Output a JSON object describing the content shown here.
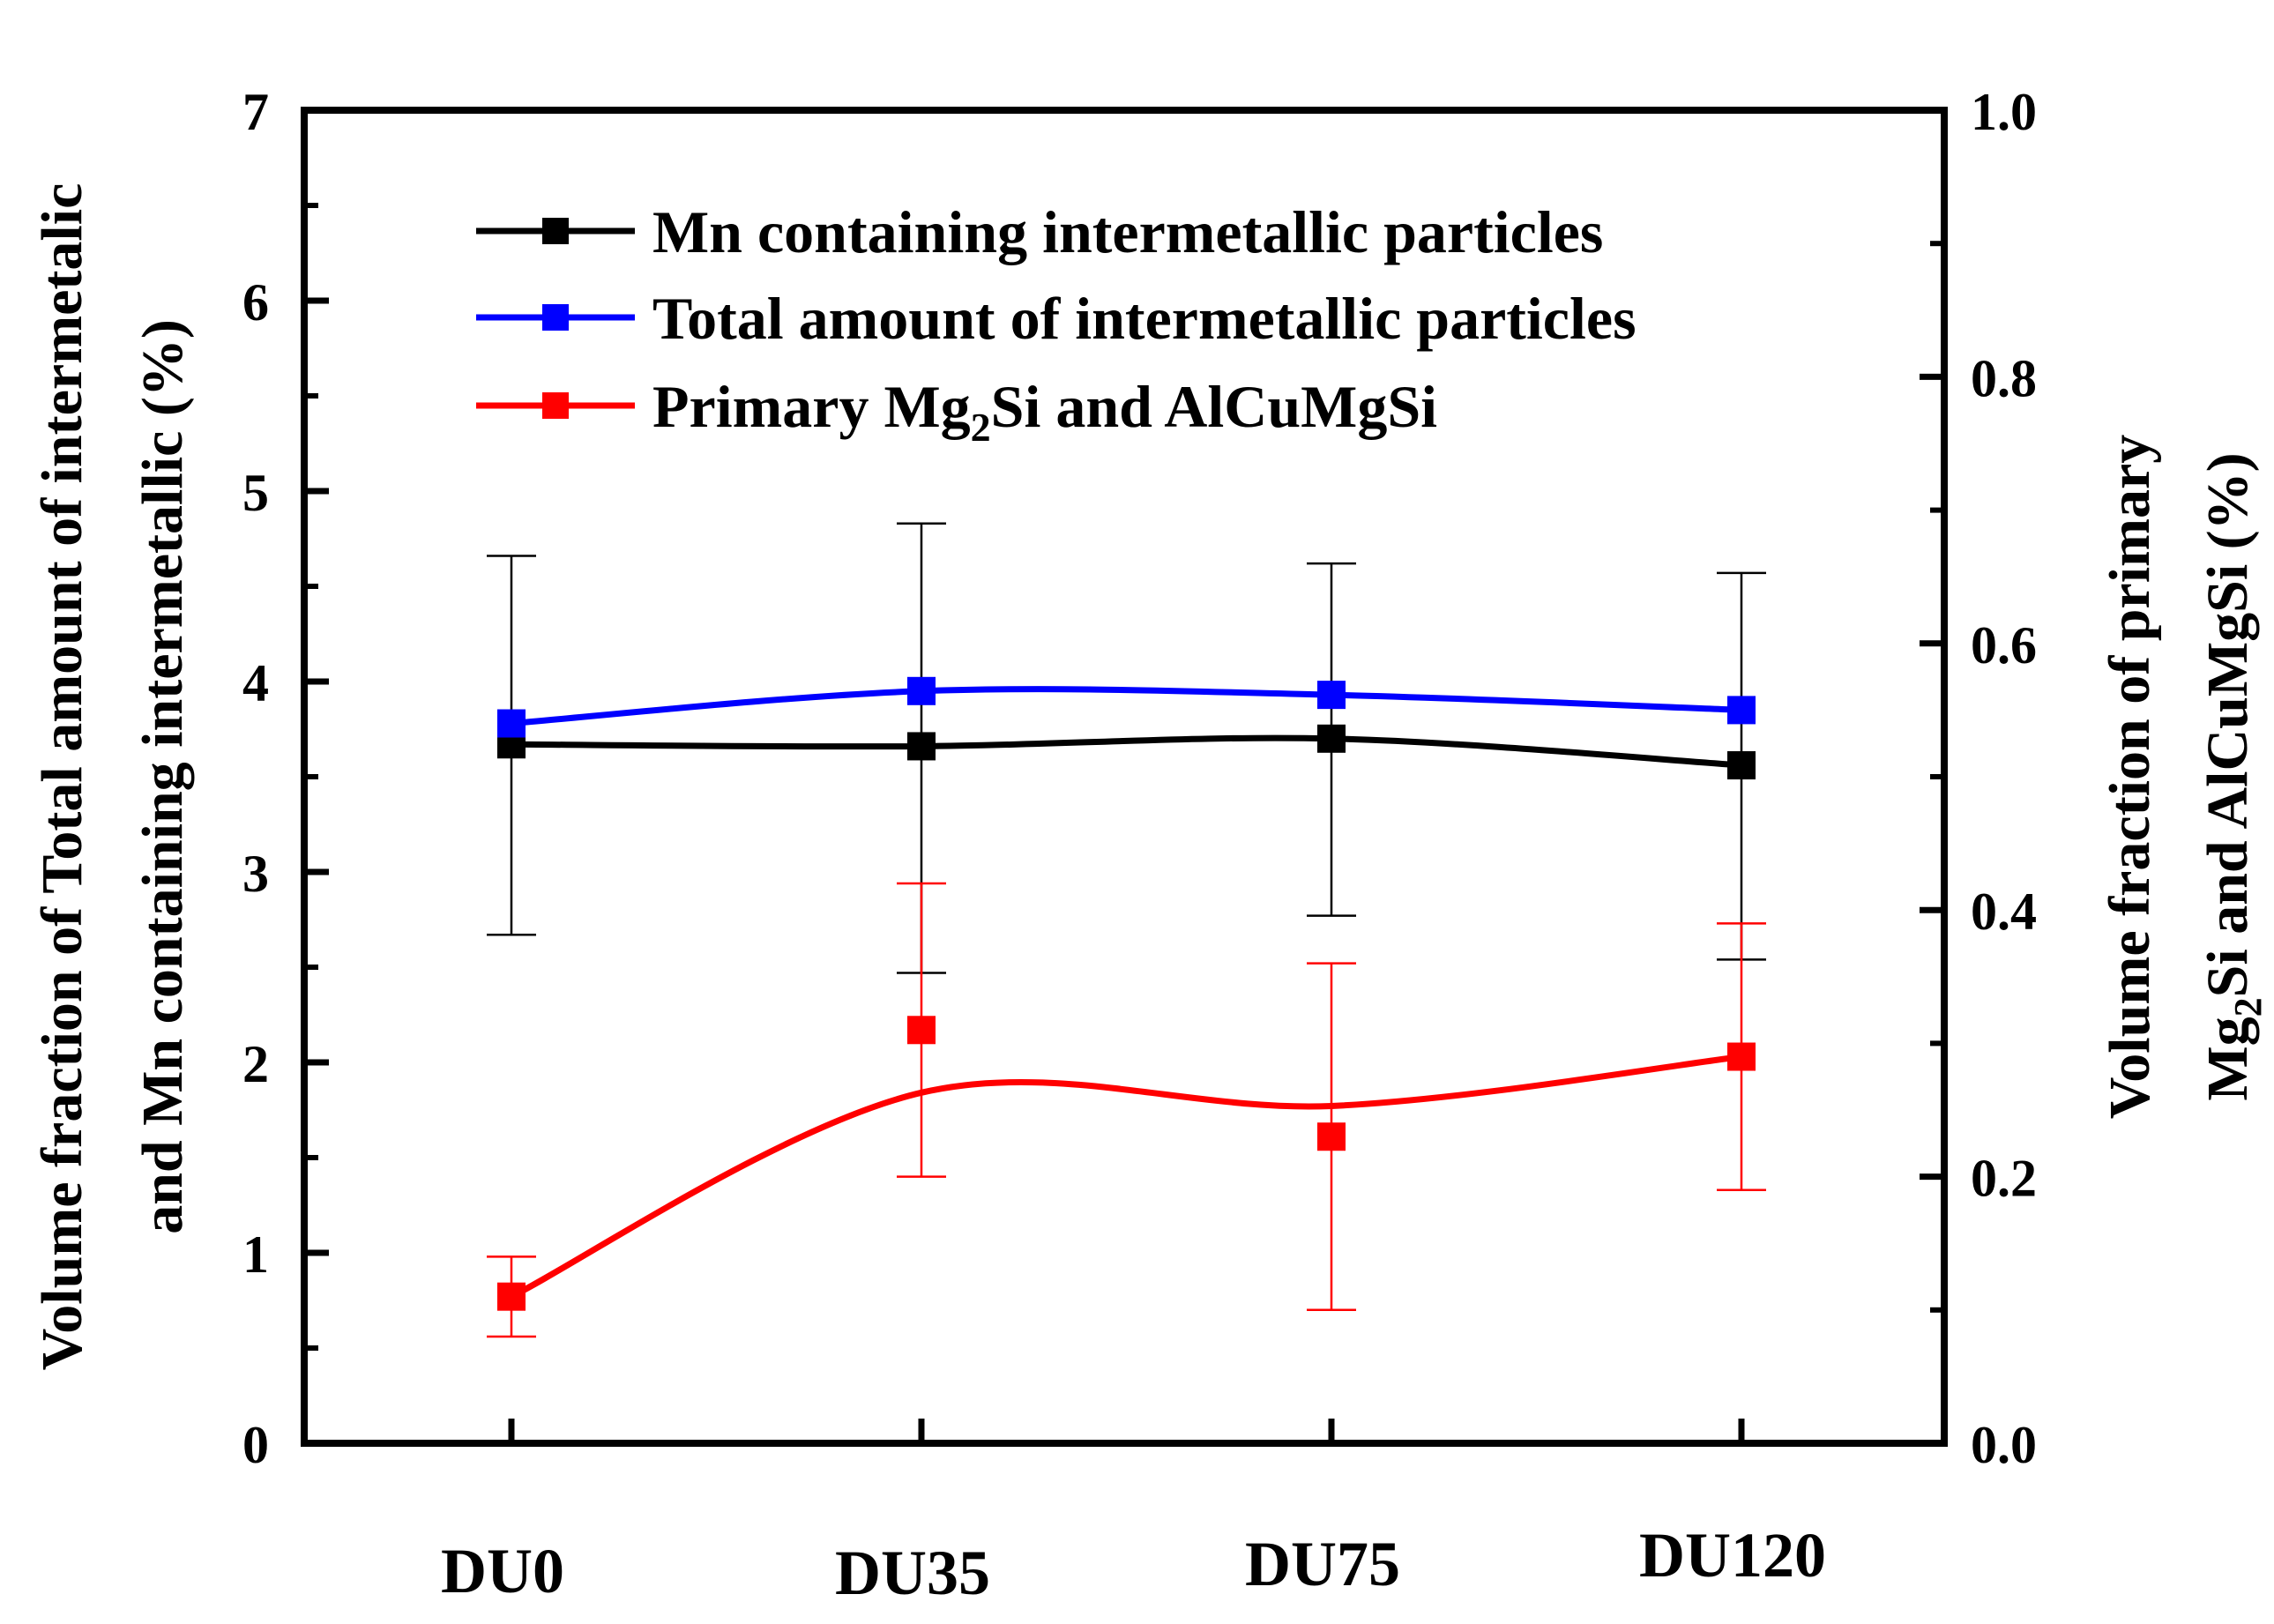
{
  "colors": {
    "mn": "#000000",
    "total": "#0000ff",
    "primary": "#ff0000",
    "axis": "#000000"
  },
  "chart_data": {
    "type": "line",
    "categories": [
      "DU0",
      "DU35",
      "DU75",
      "DU120"
    ],
    "left_axis": {
      "label_line1": "Volume fraction of Total amount of intermetalic",
      "label_line2": "and  Mn containing intermetallic (%)",
      "ylim": [
        0,
        7
      ],
      "ticks": [
        "0",
        "1",
        "2",
        "3",
        "4",
        "5",
        "6",
        "7"
      ]
    },
    "right_axis": {
      "label_line1": "Volume fraction of primary",
      "label_line2_a": "Mg",
      "label_line2_sub": "2",
      "label_line2_b": "Si and AlCuMgSi (%)",
      "ylim": [
        0.0,
        1.0
      ],
      "ticks": [
        "0.0",
        "0.2",
        "0.4",
        "0.6",
        "0.8",
        "1.0"
      ]
    },
    "series": [
      {
        "key": "mn",
        "name": "Mn containing intermetallic particles",
        "axis": "left",
        "values": [
          3.67,
          3.66,
          3.7,
          3.56
        ],
        "err_low": [
          2.67,
          2.47,
          2.77,
          2.54
        ],
        "err_high": [
          4.66,
          4.83,
          4.62,
          4.57
        ]
      },
      {
        "key": "total",
        "name": "Total amount of  intermetallic particles",
        "axis": "left",
        "values": [
          3.78,
          3.95,
          3.93,
          3.85
        ],
        "err_low": [],
        "err_high": []
      },
      {
        "key": "primary",
        "name_a": "Primary Mg",
        "name_sub": "2",
        "name_b": "Si and AlCuMgSi",
        "axis": "right",
        "values": [
          0.11,
          0.31,
          0.23,
          0.29
        ],
        "fit_midpoints": [
          0.2,
          0.27,
          0.26
        ],
        "err_low": [
          0.08,
          0.2,
          0.1,
          0.19
        ],
        "err_high": [
          0.14,
          0.42,
          0.36,
          0.39
        ]
      }
    ]
  }
}
